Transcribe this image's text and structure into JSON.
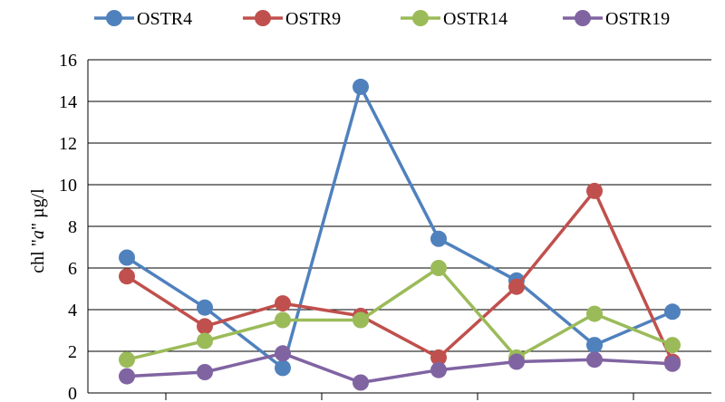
{
  "chart_data": {
    "type": "line",
    "title": "",
    "xlabel": "",
    "ylabel": "chl \"a\" µg/l",
    "ylabel_parts": [
      "chl \"",
      "a",
      "\" µg/l"
    ],
    "ylim": [
      0,
      16
    ],
    "yticks": [
      "0",
      "2",
      "4",
      "6",
      "8",
      "10",
      "12",
      "14",
      "16"
    ],
    "x": [
      1,
      2,
      3,
      4,
      5,
      6,
      7,
      8
    ],
    "grid": "horizontal",
    "legend_position": "top",
    "series": [
      {
        "name": "OSTR4",
        "color": "#4F81BD",
        "values": [
          6.5,
          4.1,
          1.2,
          14.7,
          7.4,
          5.4,
          2.3,
          3.9
        ]
      },
      {
        "name": "OSTR9",
        "color": "#C0504D",
        "values": [
          5.6,
          3.2,
          4.3,
          3.7,
          1.7,
          5.1,
          9.7,
          1.5
        ]
      },
      {
        "name": "OSTR14",
        "color": "#9BBB59",
        "values": [
          1.6,
          2.5,
          3.5,
          3.5,
          6.0,
          1.7,
          3.8,
          2.3
        ]
      },
      {
        "name": "OSTR19",
        "color": "#8064A2",
        "values": [
          0.8,
          1.0,
          1.9,
          0.5,
          1.1,
          1.5,
          1.6,
          1.4
        ]
      }
    ]
  }
}
